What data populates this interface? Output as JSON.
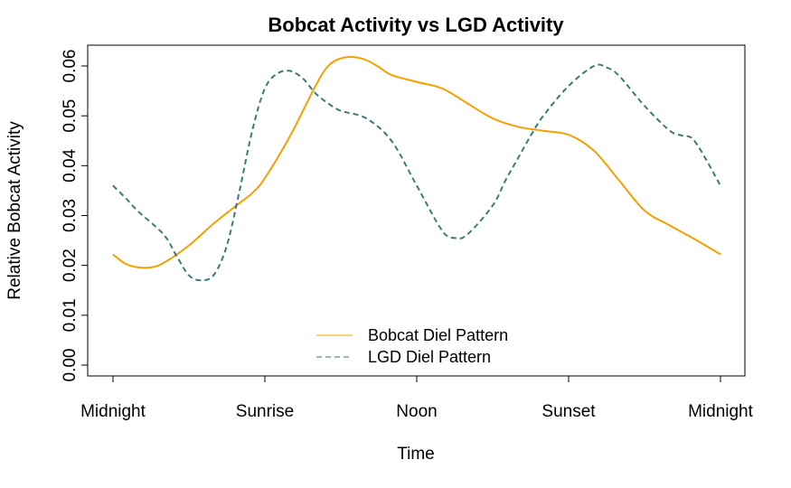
{
  "chart_data": {
    "type": "line",
    "title": "Bobcat Activity vs LGD Activity",
    "xlabel": "Time",
    "ylabel": "Relative Bobcat Activity",
    "xlim": [
      0,
      24
    ],
    "ylim": [
      0,
      0.06
    ],
    "x_ticks": [
      {
        "x": 0,
        "label": "Midnight"
      },
      {
        "x": 6,
        "label": "Sunrise"
      },
      {
        "x": 12,
        "label": "Noon"
      },
      {
        "x": 18,
        "label": "Sunset"
      },
      {
        "x": 24,
        "label": "Midnight"
      }
    ],
    "y_ticks": [
      {
        "y": 0.0,
        "label": "0.00"
      },
      {
        "y": 0.01,
        "label": "0.01"
      },
      {
        "y": 0.02,
        "label": "0.02"
      },
      {
        "y": 0.03,
        "label": "0.03"
      },
      {
        "y": 0.04,
        "label": "0.04"
      },
      {
        "y": 0.05,
        "label": "0.05"
      },
      {
        "y": 0.06,
        "label": "0.06"
      }
    ],
    "grid": false,
    "legend_position": "bottom-center",
    "series": [
      {
        "name": "Bobcat Diel Pattern",
        "color": "#F5A000",
        "line_style": "solid",
        "x": [
          0,
          0.5,
          1,
          1.5,
          2,
          3,
          4,
          5,
          5.5,
          6,
          7,
          8,
          8.5,
          9,
          9.5,
          10,
          10.5,
          11,
          12,
          13,
          14,
          15,
          16,
          17,
          18,
          19,
          20,
          21,
          22,
          23,
          24
        ],
        "y": [
          0.0222,
          0.0203,
          0.0196,
          0.0196,
          0.0205,
          0.024,
          0.0285,
          0.0325,
          0.0345,
          0.0375,
          0.046,
          0.056,
          0.06,
          0.0615,
          0.0618,
          0.0612,
          0.0598,
          0.0582,
          0.0568,
          0.0555,
          0.0525,
          0.0495,
          0.0478,
          0.047,
          0.0462,
          0.043,
          0.037,
          0.031,
          0.028,
          0.0252,
          0.0222
        ]
      },
      {
        "name": "LGD Diel Pattern",
        "color": "#3C7A78",
        "line_style": "dashed",
        "x": [
          0,
          0.5,
          1,
          2,
          2.5,
          3,
          3.5,
          4,
          4.5,
          5,
          5.5,
          6,
          6.5,
          7,
          7.5,
          8,
          8.5,
          9,
          10,
          11,
          12,
          13,
          13.5,
          14,
          15,
          15.5,
          16,
          16.5,
          17,
          18,
          19,
          19.5,
          20,
          21,
          22,
          22.5,
          23,
          24
        ],
        "y": [
          0.036,
          0.0335,
          0.0308,
          0.0262,
          0.022,
          0.018,
          0.017,
          0.0182,
          0.024,
          0.035,
          0.047,
          0.0555,
          0.0585,
          0.059,
          0.0575,
          0.0545,
          0.0525,
          0.051,
          0.0495,
          0.045,
          0.036,
          0.027,
          0.0255,
          0.0262,
          0.032,
          0.037,
          0.0415,
          0.046,
          0.05,
          0.056,
          0.06,
          0.0597,
          0.058,
          0.052,
          0.047,
          0.046,
          0.0448,
          0.036
        ]
      }
    ]
  }
}
